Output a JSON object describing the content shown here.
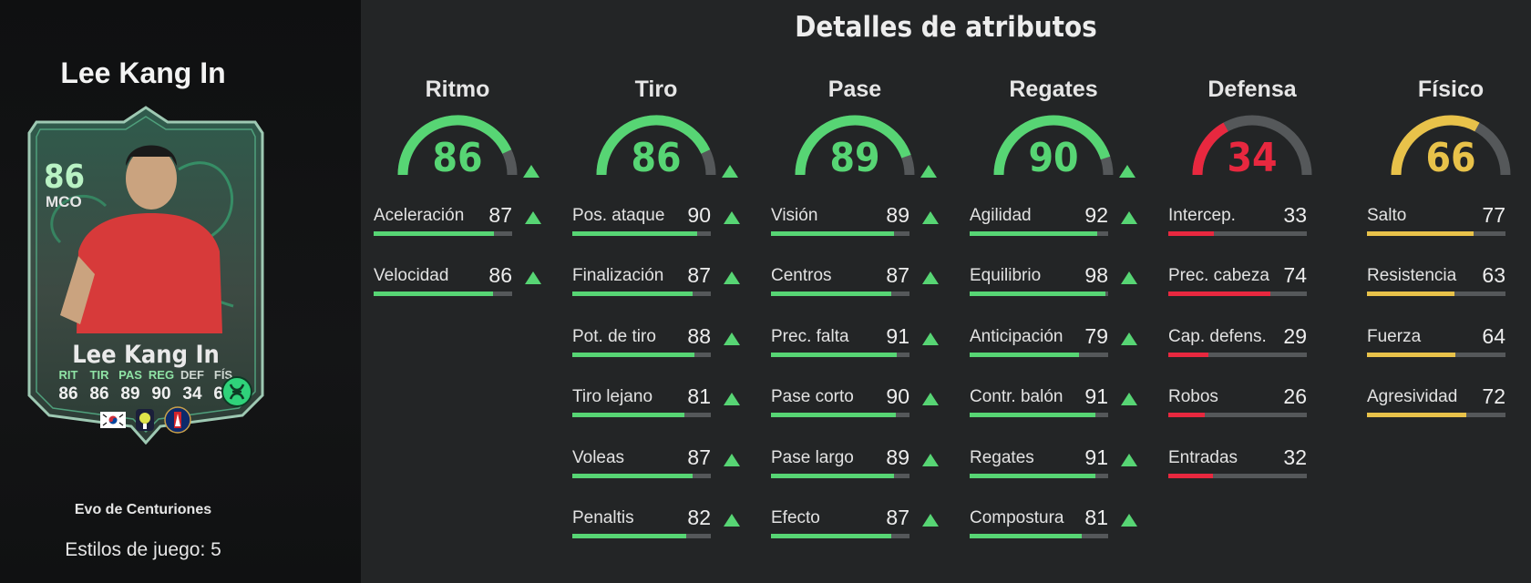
{
  "player": {
    "name": "Lee Kang In",
    "card": {
      "overall": "86",
      "position": "MCO",
      "name": "Lee Kang In",
      "stats": [
        {
          "label": "RIT",
          "value": "86",
          "upgraded": true
        },
        {
          "label": "TIR",
          "value": "86",
          "upgraded": true
        },
        {
          "label": "PAS",
          "value": "89",
          "upgraded": true
        },
        {
          "label": "REG",
          "value": "90",
          "upgraded": true
        },
        {
          "label": "DEF",
          "value": "34",
          "upgraded": false
        },
        {
          "label": "FÍS",
          "value": "66",
          "upgraded": false
        }
      ],
      "icons": [
        "korea-flag-icon",
        "ligue1-logo-icon",
        "psg-crest-icon",
        "evolution-icon"
      ]
    },
    "evolution": "Evo de Centuriones",
    "playstyles": "Estilos de juego: 5"
  },
  "main": {
    "title": "Detalles de atributos",
    "colors": {
      "green": "#57d574",
      "red": "#e8283f",
      "yellow": "#e8c24a",
      "track": "#55585a"
    },
    "categories": [
      {
        "key": "ritmo",
        "title": "Ritmo",
        "value": "86",
        "level": 86,
        "color": "#57d574",
        "upgraded": true,
        "attrs": [
          {
            "label": "Aceleración",
            "value": "87",
            "level": 87,
            "upgraded": true
          },
          {
            "label": "Velocidad",
            "value": "86",
            "level": 86,
            "upgraded": true
          }
        ]
      },
      {
        "key": "tiro",
        "title": "Tiro",
        "value": "86",
        "level": 86,
        "color": "#57d574",
        "upgraded": true,
        "attrs": [
          {
            "label": "Pos. ataque",
            "value": "90",
            "level": 90,
            "upgraded": true
          },
          {
            "label": "Finalización",
            "value": "87",
            "level": 87,
            "upgraded": true
          },
          {
            "label": "Pot. de tiro",
            "value": "88",
            "level": 88,
            "upgraded": true
          },
          {
            "label": "Tiro lejano",
            "value": "81",
            "level": 81,
            "upgraded": true
          },
          {
            "label": "Voleas",
            "value": "87",
            "level": 87,
            "upgraded": true
          },
          {
            "label": "Penaltis",
            "value": "82",
            "level": 82,
            "upgraded": true
          }
        ]
      },
      {
        "key": "pase",
        "title": "Pase",
        "value": "89",
        "level": 89,
        "color": "#57d574",
        "upgraded": true,
        "attrs": [
          {
            "label": "Visión",
            "value": "89",
            "level": 89,
            "upgraded": true
          },
          {
            "label": "Centros",
            "value": "87",
            "level": 87,
            "upgraded": true
          },
          {
            "label": "Prec. falta",
            "value": "91",
            "level": 91,
            "upgraded": true
          },
          {
            "label": "Pase corto",
            "value": "90",
            "level": 90,
            "upgraded": true
          },
          {
            "label": "Pase largo",
            "value": "89",
            "level": 89,
            "upgraded": true
          },
          {
            "label": "Efecto",
            "value": "87",
            "level": 87,
            "upgraded": true
          }
        ]
      },
      {
        "key": "regates",
        "title": "Regates",
        "value": "90",
        "level": 90,
        "color": "#57d574",
        "upgraded": true,
        "attrs": [
          {
            "label": "Agilidad",
            "value": "92",
            "level": 92,
            "upgraded": true
          },
          {
            "label": "Equilibrio",
            "value": "98",
            "level": 98,
            "upgraded": true
          },
          {
            "label": "Anticipación",
            "value": "79",
            "level": 79,
            "upgraded": true
          },
          {
            "label": "Contr. balón",
            "value": "91",
            "level": 91,
            "upgraded": true
          },
          {
            "label": "Regates",
            "value": "91",
            "level": 91,
            "upgraded": true
          },
          {
            "label": "Compostura",
            "value": "81",
            "level": 81,
            "upgraded": true
          }
        ]
      },
      {
        "key": "defensa",
        "title": "Defensa",
        "value": "34",
        "level": 34,
        "color": "#e8283f",
        "upgraded": false,
        "attrs": [
          {
            "label": "Intercep.",
            "value": "33",
            "level": 33,
            "upgraded": false
          },
          {
            "label": "Prec. cabeza",
            "value": "74",
            "level": 74,
            "upgraded": false
          },
          {
            "label": "Cap. defens.",
            "value": "29",
            "level": 29,
            "upgraded": false
          },
          {
            "label": "Robos",
            "value": "26",
            "level": 26,
            "upgraded": false
          },
          {
            "label": "Entradas",
            "value": "32",
            "level": 32,
            "upgraded": false
          }
        ]
      },
      {
        "key": "fisico",
        "title": "Físico",
        "value": "66",
        "level": 66,
        "color": "#e8c24a",
        "upgraded": false,
        "attrs": [
          {
            "label": "Salto",
            "value": "77",
            "level": 77,
            "upgraded": false
          },
          {
            "label": "Resistencia",
            "value": "63",
            "level": 63,
            "upgraded": false
          },
          {
            "label": "Fuerza",
            "value": "64",
            "level": 64,
            "upgraded": false
          },
          {
            "label": "Agresividad",
            "value": "72",
            "level": 72,
            "upgraded": false
          }
        ]
      }
    ]
  }
}
